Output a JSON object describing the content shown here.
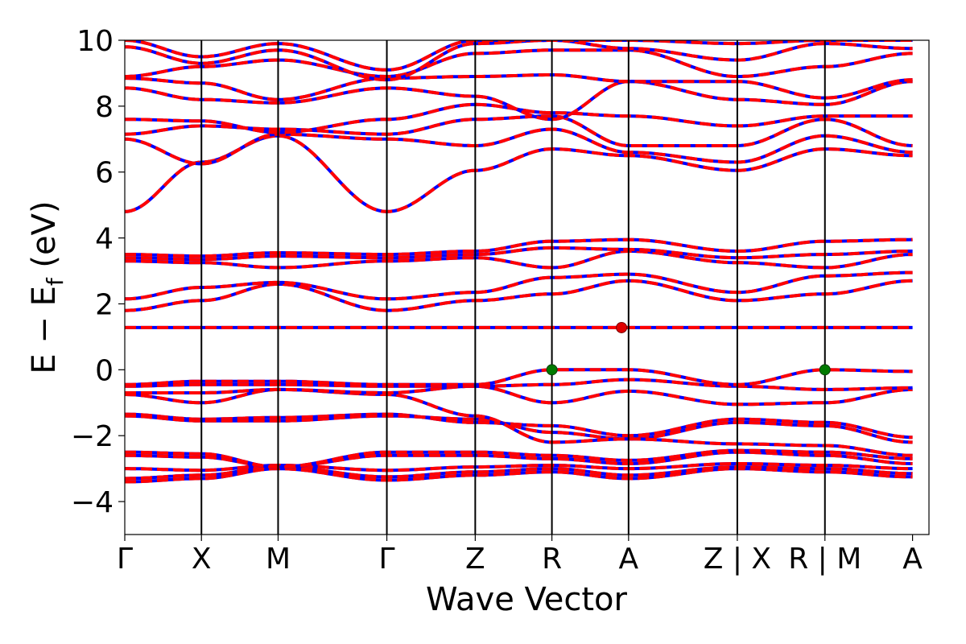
{
  "chart_data": {
    "type": "line",
    "title": "",
    "xlabel": "Wave Vector",
    "ylabel": "E − E",
    "ylabel_subscript": "f",
    "ylabel_unit": " (eV)",
    "xlim": [
      0,
      10.28
    ],
    "ylim": [
      -5,
      10
    ],
    "yticks": [
      -4,
      -2,
      0,
      2,
      4,
      6,
      8,
      10
    ],
    "ytick_labels": [
      "−4",
      "−2",
      "0",
      "2",
      "4",
      "6",
      "8",
      "10"
    ],
    "kpoint_positions": [
      0,
      0.98,
      1.96,
      3.35,
      4.48,
      5.46,
      6.44,
      7.83,
      8.95,
      10.07
    ],
    "kpoint_labels": [
      "Γ",
      "X",
      "M",
      "Γ",
      "Z",
      "R",
      "A",
      "Z|X",
      "R|M",
      "A"
    ],
    "xtick_labels": [
      {
        "x": 0,
        "label": "Γ"
      },
      {
        "x": 0.98,
        "label": "X"
      },
      {
        "x": 1.96,
        "label": "M"
      },
      {
        "x": 3.35,
        "label": "Γ"
      },
      {
        "x": 4.48,
        "label": "Z"
      },
      {
        "x": 5.46,
        "label": "R"
      },
      {
        "x": 6.44,
        "label": "A"
      },
      {
        "x": 7.83,
        "label": "Z | X"
      },
      {
        "x": 8.95,
        "label": "R | M"
      },
      {
        "x": 10.07,
        "label": "A"
      }
    ],
    "segments": [
      [
        0,
        7.83
      ],
      [
        7.83,
        8.95
      ],
      [
        8.95,
        10.07
      ]
    ],
    "series": [
      {
        "values": [
          -3.4,
          -3.3,
          -3.0,
          -3.35,
          -3.2,
          -3.1,
          -3.3,
          -3.0,
          -3.1,
          -3.25
        ]
      },
      {
        "values": [
          -3.3,
          -3.2,
          -2.95,
          -3.25,
          -3.1,
          -3.0,
          -3.2,
          -2.95,
          -3.0,
          -3.15
        ]
      },
      {
        "values": [
          -3.0,
          -3.05,
          -2.9,
          -3.05,
          -2.95,
          -2.9,
          -3.0,
          -2.85,
          -2.9,
          -3.0
        ]
      },
      {
        "values": [
          -2.6,
          -2.65,
          -2.95,
          -2.6,
          -2.6,
          -2.7,
          -2.85,
          -2.5,
          -2.6,
          -2.85
        ]
      },
      {
        "values": [
          -2.5,
          -2.55,
          -2.95,
          -2.5,
          -2.5,
          -2.6,
          -2.75,
          -2.45,
          -2.5,
          -2.7
        ]
      },
      {
        "values": [
          -1.35,
          -1.5,
          -1.45,
          -1.35,
          -1.6,
          -1.7,
          -2.0,
          -1.5,
          -1.6,
          -2.05
        ]
      },
      {
        "values": [
          -1.4,
          -1.55,
          -1.55,
          -1.4,
          -1.5,
          -1.9,
          -2.1,
          -1.6,
          -1.7,
          -2.2
        ]
      },
      {
        "values": [
          -0.75,
          -1.0,
          -0.6,
          -0.75,
          -1.4,
          -2.2,
          -2.1,
          -2.25,
          -2.3,
          -2.6
        ]
      },
      {
        "values": [
          -0.7,
          -0.7,
          -0.6,
          -0.7,
          -0.5,
          -1.0,
          -0.65,
          -1.05,
          -1.0,
          -0.6
        ]
      },
      {
        "values": [
          -0.5,
          -0.45,
          -0.45,
          -0.5,
          -0.5,
          -0.45,
          -0.3,
          -0.5,
          -0.6,
          -0.55
        ]
      },
      {
        "values": [
          -0.45,
          -0.35,
          -0.35,
          -0.45,
          -0.45,
          0.0,
          0.0,
          -0.45,
          0.0,
          -0.05
        ]
      },
      {
        "values": [
          1.28,
          1.28,
          1.28,
          1.28,
          1.28,
          1.28,
          1.28,
          1.28,
          1.28,
          1.28
        ]
      },
      {
        "values": [
          1.8,
          2.1,
          2.6,
          1.8,
          2.1,
          2.3,
          2.7,
          2.1,
          2.3,
          2.7
        ]
      },
      {
        "values": [
          2.15,
          2.5,
          2.65,
          2.15,
          2.35,
          2.8,
          2.9,
          2.35,
          2.85,
          2.95
        ]
      },
      {
        "values": [
          3.3,
          3.25,
          3.1,
          3.3,
          3.4,
          3.1,
          3.6,
          3.25,
          3.1,
          3.5
        ]
      },
      {
        "values": [
          3.4,
          3.35,
          3.45,
          3.4,
          3.5,
          3.7,
          3.65,
          3.4,
          3.5,
          3.6
        ]
      },
      {
        "values": [
          3.5,
          3.45,
          3.55,
          3.5,
          3.6,
          3.9,
          3.95,
          3.6,
          3.9,
          3.95
        ]
      },
      {
        "values": [
          4.8,
          6.3,
          7.1,
          4.8,
          6.05,
          6.7,
          6.5,
          6.05,
          6.7,
          6.5
        ]
      },
      {
        "values": [
          7.0,
          6.25,
          7.15,
          7.0,
          6.8,
          7.3,
          6.6,
          6.3,
          7.1,
          6.6
        ]
      },
      {
        "values": [
          7.15,
          7.4,
          7.3,
          7.15,
          7.6,
          7.7,
          6.8,
          6.8,
          7.6,
          6.8
        ]
      },
      {
        "values": [
          7.6,
          7.55,
          7.2,
          7.6,
          8.05,
          7.8,
          7.7,
          7.4,
          7.7,
          7.7
        ]
      },
      {
        "values": [
          8.55,
          8.2,
          8.1,
          8.55,
          8.3,
          7.6,
          8.75,
          8.2,
          8.05,
          8.75
        ]
      },
      {
        "values": [
          8.85,
          8.7,
          8.2,
          8.85,
          8.9,
          8.95,
          8.75,
          8.75,
          8.25,
          8.8
        ]
      },
      {
        "values": [
          8.9,
          9.2,
          9.4,
          8.9,
          9.6,
          9.7,
          9.7,
          8.9,
          9.2,
          9.6
        ]
      },
      {
        "values": [
          9.8,
          9.3,
          9.7,
          8.8,
          9.9,
          10.0,
          9.75,
          9.4,
          9.9,
          9.75
        ]
      },
      {
        "values": [
          10.0,
          9.5,
          9.9,
          9.1,
          10.0,
          10.0,
          10.0,
          9.9,
          10.0,
          10.0
        ]
      }
    ],
    "colors": {
      "band_primary": "#ff0000",
      "band_secondary": "#0000ff",
      "vbm_marker": "#007a00",
      "cbm_marker": "#e00000",
      "vline": "#000000"
    },
    "markers": [
      {
        "x": 5.46,
        "y": 0.0,
        "role": "vbm"
      },
      {
        "x": 8.95,
        "y": 0.0,
        "role": "vbm"
      },
      {
        "x": 6.35,
        "y": 1.28,
        "role": "cbm"
      }
    ],
    "grid": false
  }
}
